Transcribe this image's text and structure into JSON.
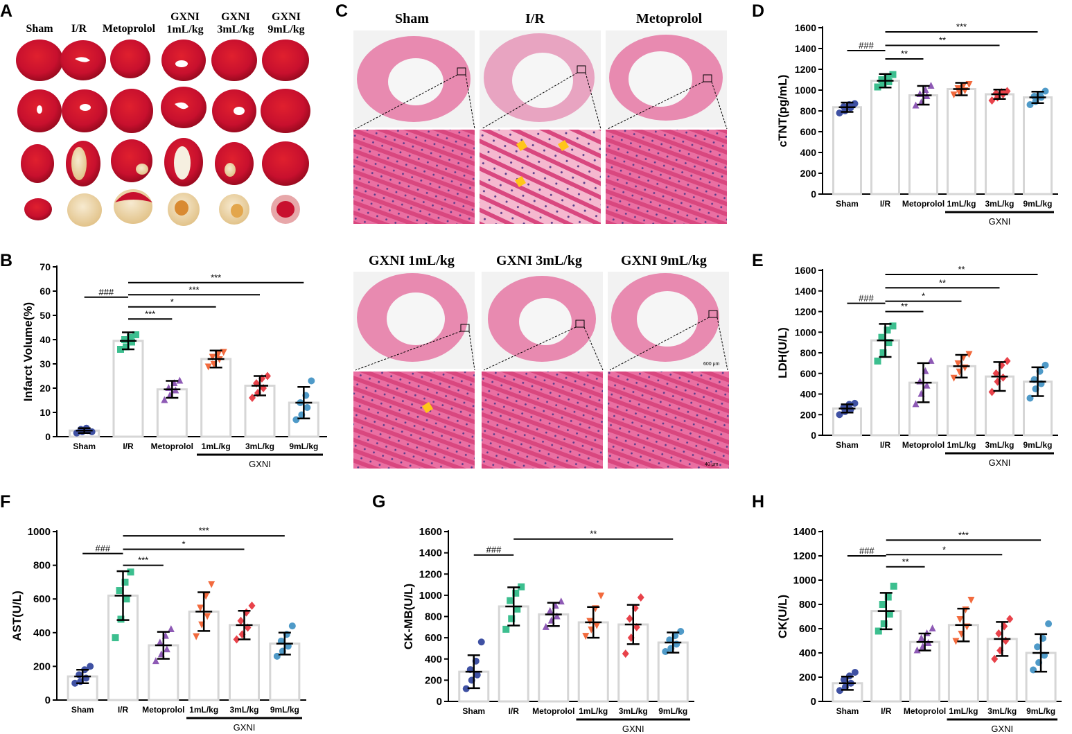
{
  "panels": {
    "A": {
      "letter": "A",
      "group_labels": [
        "Sham",
        "I/R",
        "Metoprolol",
        "GXNI\n1mL/kg",
        "GXNI\n3mL/kg",
        "GXNI\n9mL/kg"
      ]
    },
    "C": {
      "letter": "C",
      "labels_top": [
        "Sham",
        "I/R",
        "Metoprolol"
      ],
      "labels_bottom": [
        "GXNI 1mL/kg",
        "GXNI 3mL/kg",
        "GXNI 9mL/kg"
      ],
      "scale_top": "600 μm",
      "scale_bottom": "40 μm"
    },
    "B": {
      "letter": "B"
    },
    "D": {
      "letter": "D"
    },
    "E": {
      "letter": "E"
    },
    "F": {
      "letter": "F"
    },
    "G": {
      "letter": "G"
    },
    "H": {
      "letter": "H"
    }
  },
  "colors": {
    "sham": "#3f51a3",
    "ir": "#3cbf8f",
    "metoprolol": "#8e5ab5",
    "gxni1": "#f26a3d",
    "gxni3": "#e8424a",
    "gxni9": "#4f9ac8",
    "bar_outline": "#d6d6d6",
    "tissue_red": "#c8102e",
    "tissue_pale": "#efd9a8",
    "he_pink": "#e45a93",
    "he_bg": "#f2f2f2",
    "arrow": "#ffc61a"
  },
  "chart_data": [
    {
      "id": "B",
      "type": "bar",
      "ylabel": "Infarct Volume(%)",
      "ylim": [
        0,
        70
      ],
      "ticks": [
        0,
        10,
        20,
        30,
        40,
        50,
        60,
        70
      ],
      "label_style": "serif",
      "categories": [
        "Sham",
        "I/R",
        "Metoprolol",
        "1mL/kg",
        "3mL/kg",
        "9mL/kg"
      ],
      "group_label": "GXNI",
      "means": [
        2.5,
        39.5,
        19.5,
        32,
        21,
        14
      ],
      "sd": [
        1,
        3.5,
        3.5,
        3.5,
        4,
        6.5
      ],
      "points": [
        [
          1.5,
          2,
          2.5,
          3,
          3.5,
          2
        ],
        [
          36,
          37,
          39,
          40,
          41,
          42
        ],
        [
          15,
          17,
          19,
          20,
          22,
          23
        ],
        [
          29,
          30,
          32,
          33,
          34,
          35
        ],
        [
          16,
          18,
          20,
          22,
          24,
          25
        ],
        [
          7,
          9,
          12,
          14,
          17,
          23
        ]
      ],
      "markers": [
        "circle",
        "square",
        "triangle",
        "down-triangle",
        "diamond",
        "circle"
      ],
      "significance": [
        {
          "from": 0,
          "to": 1,
          "label": "###",
          "y": 57.5
        },
        {
          "from": 1,
          "to": 2,
          "label": "***",
          "y": 48.5
        },
        {
          "from": 1,
          "to": 3,
          "label": "*",
          "y": 53.5
        },
        {
          "from": 1,
          "to": 4,
          "label": "***",
          "y": 58.5
        },
        {
          "from": 1,
          "to": 5,
          "label": "***",
          "y": 63.5
        }
      ]
    },
    {
      "id": "D",
      "type": "bar",
      "ylabel": "cTNT(pg/mL)",
      "ylim": [
        0,
        1600
      ],
      "ticks": [
        0,
        200,
        400,
        600,
        800,
        1000,
        1200,
        1400,
        1600
      ],
      "categories": [
        "Sham",
        "I/R",
        "Metoprolol",
        "1mL/kg",
        "3mL/kg",
        "9mL/kg"
      ],
      "group_label": "GXNI",
      "means": [
        835,
        1090,
        950,
        1010,
        960,
        930
      ],
      "sd": [
        45,
        65,
        90,
        60,
        45,
        55
      ],
      "points": [
        [
          780,
          800,
          830,
          840,
          860,
          870
        ],
        [
          1030,
          1060,
          1080,
          1100,
          1130,
          1150
        ],
        [
          850,
          880,
          940,
          960,
          1000,
          1040
        ],
        [
          960,
          980,
          1000,
          1020,
          1050,
          1060
        ],
        [
          900,
          930,
          960,
          970,
          980,
          990
        ],
        [
          860,
          890,
          930,
          940,
          960,
          990
        ]
      ],
      "markers": [
        "circle",
        "square",
        "triangle",
        "down-triangle",
        "diamond",
        "circle"
      ],
      "significance": [
        {
          "from": 0,
          "to": 1,
          "label": "###",
          "y": 1380
        },
        {
          "from": 1,
          "to": 2,
          "label": "**",
          "y": 1300
        },
        {
          "from": 1,
          "to": 4,
          "label": "**",
          "y": 1430
        },
        {
          "from": 1,
          "to": 5,
          "label": "***",
          "y": 1560
        }
      ]
    },
    {
      "id": "E",
      "type": "bar",
      "ylabel": "LDH(U/L)",
      "ylim": [
        0,
        1600
      ],
      "ticks": [
        0,
        200,
        400,
        600,
        800,
        1000,
        1200,
        1400,
        1600
      ],
      "categories": [
        "Sham",
        "I/R",
        "Metoprolol",
        "1mL/kg",
        "3mL/kg",
        "9mL/kg"
      ],
      "group_label": "GXNI",
      "means": [
        260,
        920,
        510,
        670,
        570,
        520
      ],
      "sd": [
        40,
        160,
        190,
        110,
        140,
        140
      ],
      "points": [
        [
          200,
          230,
          250,
          270,
          300,
          310
        ],
        [
          720,
          800,
          900,
          950,
          1020,
          1060
        ],
        [
          300,
          400,
          480,
          520,
          620,
          720
        ],
        [
          560,
          620,
          660,
          700,
          760,
          790
        ],
        [
          420,
          520,
          560,
          600,
          680,
          720
        ],
        [
          360,
          450,
          500,
          540,
          620,
          680
        ]
      ],
      "markers": [
        "circle",
        "square",
        "triangle",
        "down-triangle",
        "diamond",
        "circle"
      ],
      "significance": [
        {
          "from": 0,
          "to": 1,
          "label": "###",
          "y": 1280
        },
        {
          "from": 1,
          "to": 2,
          "label": "**",
          "y": 1200
        },
        {
          "from": 1,
          "to": 3,
          "label": "*",
          "y": 1300
        },
        {
          "from": 1,
          "to": 4,
          "label": "**",
          "y": 1430
        },
        {
          "from": 1,
          "to": 5,
          "label": "**",
          "y": 1560
        }
      ]
    },
    {
      "id": "F",
      "type": "bar",
      "ylabel": "AST(U/L)",
      "ylim": [
        0,
        1000
      ],
      "ticks": [
        0,
        200,
        400,
        600,
        800,
        1000
      ],
      "categories": [
        "Sham",
        "I/R",
        "Metoprolol",
        "1mL/kg",
        "3mL/kg",
        "9mL/kg"
      ],
      "group_label": "GXNI",
      "means": [
        140,
        620,
        325,
        525,
        445,
        335
      ],
      "sd": [
        40,
        145,
        80,
        115,
        85,
        65
      ],
      "points": [
        [
          100,
          110,
          130,
          150,
          180,
          200
        ],
        [
          370,
          480,
          600,
          650,
          700,
          760
        ],
        [
          230,
          270,
          300,
          340,
          380,
          420
        ],
        [
          380,
          450,
          500,
          550,
          620,
          690
        ],
        [
          360,
          390,
          430,
          470,
          520,
          560
        ],
        [
          260,
          290,
          320,
          350,
          390,
          440
        ]
      ],
      "markers": [
        "circle",
        "square",
        "triangle",
        "down-triangle",
        "diamond",
        "circle"
      ],
      "significance": [
        {
          "from": 0,
          "to": 1,
          "label": "###",
          "y": 870
        },
        {
          "from": 1,
          "to": 2,
          "label": "***",
          "y": 800
        },
        {
          "from": 1,
          "to": 4,
          "label": "*",
          "y": 895
        },
        {
          "from": 1,
          "to": 5,
          "label": "***",
          "y": 975
        }
      ]
    },
    {
      "id": "G",
      "type": "bar",
      "ylabel": "CK-MB(U/L)",
      "ylim": [
        0,
        1600
      ],
      "ticks": [
        0,
        200,
        400,
        600,
        800,
        1000,
        1200,
        1400,
        1600
      ],
      "categories": [
        "Sham",
        "I/R",
        "Metoprolol",
        "1mL/kg",
        "3mL/kg",
        "9mL/kg"
      ],
      "group_label": "GXNI",
      "means": [
        280,
        895,
        820,
        745,
        725,
        555
      ],
      "sd": [
        155,
        180,
        110,
        145,
        185,
        95
      ],
      "points": [
        [
          120,
          200,
          250,
          300,
          380,
          560
        ],
        [
          680,
          780,
          870,
          950,
          1020,
          1080
        ],
        [
          700,
          760,
          800,
          850,
          900,
          940
        ],
        [
          620,
          680,
          720,
          760,
          880,
          1000
        ],
        [
          450,
          600,
          700,
          780,
          880,
          980
        ],
        [
          470,
          500,
          540,
          580,
          620,
          660
        ]
      ],
      "markers": [
        "circle",
        "square",
        "triangle",
        "down-triangle",
        "diamond",
        "circle"
      ],
      "significance": [
        {
          "from": 0,
          "to": 1,
          "label": "###",
          "y": 1380
        },
        {
          "from": 1,
          "to": 5,
          "label": "**",
          "y": 1530
        }
      ]
    },
    {
      "id": "H",
      "type": "bar",
      "ylabel": "CK(U/L)",
      "ylim": [
        0,
        1400
      ],
      "ticks": [
        0,
        200,
        400,
        600,
        800,
        1000,
        1200,
        1400
      ],
      "categories": [
        "Sham",
        "I/R",
        "Metoprolol",
        "1mL/kg",
        "3mL/kg",
        "9mL/kg"
      ],
      "group_label": "GXNI",
      "means": [
        150,
        745,
        490,
        630,
        515,
        400
      ],
      "sd": [
        55,
        150,
        70,
        135,
        140,
        155
      ],
      "points": [
        [
          90,
          120,
          150,
          180,
          210,
          240
        ],
        [
          580,
          640,
          720,
          800,
          860,
          950
        ],
        [
          420,
          450,
          480,
          520,
          560,
          600
        ],
        [
          500,
          560,
          620,
          680,
          760,
          840
        ],
        [
          350,
          420,
          500,
          560,
          620,
          680
        ],
        [
          260,
          320,
          380,
          450,
          520,
          640
        ]
      ],
      "markers": [
        "circle",
        "square",
        "triangle",
        "down-triangle",
        "diamond",
        "circle"
      ],
      "significance": [
        {
          "from": 0,
          "to": 1,
          "label": "###",
          "y": 1200
        },
        {
          "from": 1,
          "to": 2,
          "label": "**",
          "y": 1110
        },
        {
          "from": 1,
          "to": 4,
          "label": "*",
          "y": 1210
        },
        {
          "from": 1,
          "to": 5,
          "label": "***",
          "y": 1330
        }
      ]
    }
  ]
}
